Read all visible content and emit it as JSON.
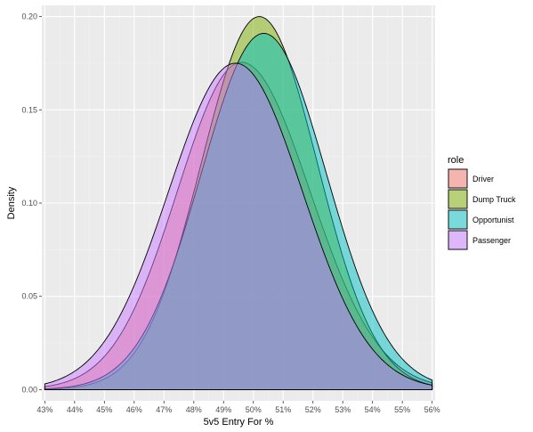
{
  "chart_data": {
    "type": "area",
    "subtype": "density",
    "title": "",
    "xlabel": "5v5 Entry For %",
    "ylabel": "Density",
    "xlim": [
      42.9,
      56.1
    ],
    "ylim": [
      -0.006,
      0.206
    ],
    "x_ticks": [
      43,
      44,
      45,
      46,
      47,
      48,
      49,
      50,
      51,
      52,
      53,
      54,
      55,
      56
    ],
    "x_tick_labels": [
      "43%",
      "44%",
      "45%",
      "46%",
      "47%",
      "48%",
      "49%",
      "50%",
      "51%",
      "52%",
      "53%",
      "54%",
      "55%",
      "56%"
    ],
    "y_ticks": [
      0,
      0.05,
      0.1,
      0.15,
      0.2
    ],
    "y_tick_labels": [
      "0.00",
      "0.05",
      "0.10",
      "0.15",
      "0.20"
    ],
    "x_range_data": [
      43,
      56
    ],
    "grid": true,
    "legend": {
      "title": "role",
      "placement": "right"
    },
    "series": [
      {
        "name": "Driver",
        "color": "#F8766D",
        "peak_x": 49.6,
        "peak_y": 0.1755,
        "spread_left": 2.15,
        "spread_right": 2.3
      },
      {
        "name": "Dump Truck",
        "color": "#7CAE00",
        "peak_x": 50.2,
        "peak_y": 0.2,
        "spread_left": 1.95,
        "spread_right": 1.95
      },
      {
        "name": "Opportunist",
        "color": "#00BFC4",
        "peak_x": 50.35,
        "peak_y": 0.191,
        "spread_left": 2.1,
        "spread_right": 2.1
      },
      {
        "name": "Passenger",
        "color": "#C77CFF",
        "peak_x": 49.4,
        "peak_y": 0.175,
        "spread_left": 2.25,
        "spread_right": 2.25
      }
    ]
  }
}
